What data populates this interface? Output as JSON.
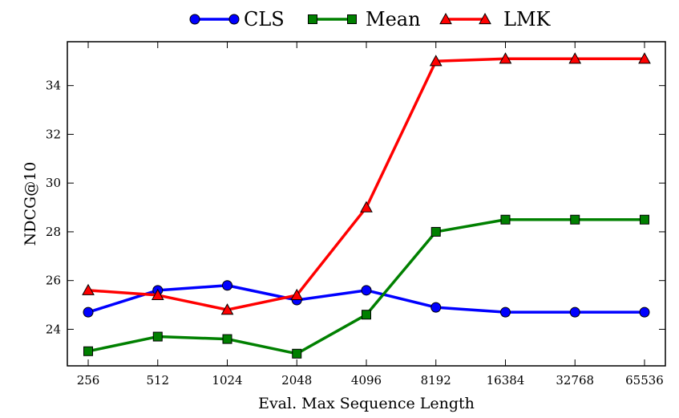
{
  "chart_data": {
    "type": "line",
    "title": "",
    "xlabel": "Eval. Max Sequence Length",
    "ylabel": "NDCG@10",
    "categories": [
      "256",
      "512",
      "1024",
      "2048",
      "4096",
      "8192",
      "16384",
      "32768",
      "65536"
    ],
    "ylim": [
      22.5,
      35.8
    ],
    "yticks": [
      "24",
      "26",
      "28",
      "30",
      "32",
      "34"
    ],
    "legend_position": "top",
    "series": [
      {
        "name": "CLS",
        "color": "#0000ff",
        "marker": "circle",
        "values": [
          24.7,
          25.6,
          25.8,
          25.2,
          25.6,
          24.9,
          24.7,
          24.7,
          24.7
        ]
      },
      {
        "name": "Mean",
        "color": "#008000",
        "marker": "square",
        "values": [
          23.1,
          23.7,
          23.6,
          23.0,
          24.6,
          28.0,
          28.5,
          28.5,
          28.5
        ]
      },
      {
        "name": "LMK",
        "color": "#ff0000",
        "marker": "triangle",
        "values": [
          25.6,
          25.4,
          24.8,
          25.4,
          29.0,
          35.0,
          35.1,
          35.1,
          35.1
        ]
      }
    ]
  }
}
